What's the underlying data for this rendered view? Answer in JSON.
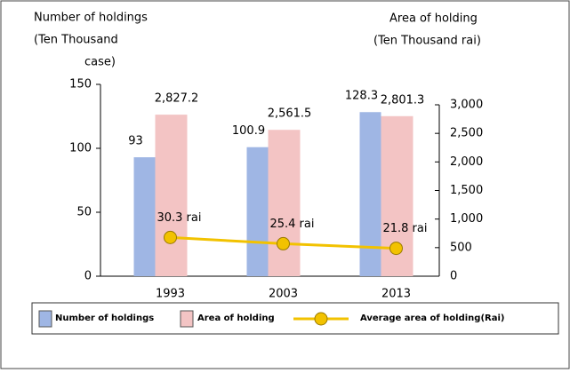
{
  "chart_data": {
    "type": "bar",
    "ylabel": [
      "Number of holdings",
      "(Ten Thousand",
      "case)"
    ],
    "y2label": [
      "Area of holding",
      "(Ten Thousand rai)"
    ],
    "categories": [
      "1993",
      "2003",
      "2013"
    ],
    "ylim": [
      0,
      150
    ],
    "yticks": [
      0,
      50,
      100,
      150
    ],
    "y2lim": [
      0,
      3000
    ],
    "y2ticks": [
      0,
      500,
      {
        "value": 1000,
        "label": "1,000"
      },
      {
        "value": 1500,
        "label": "1,500"
      },
      {
        "value": 2000,
        "label": "2,000"
      },
      {
        "value": 2500,
        "label": "2,500"
      },
      {
        "value": 3000,
        "label": "3,000"
      }
    ],
    "legend": "bottom",
    "series": [
      {
        "name": "Number of holdings",
        "type": "bar",
        "color": "#9fb6e4",
        "values": [
          93,
          100.9,
          128.3
        ]
      },
      {
        "name": "Area of holding",
        "type": "bar",
        "axis": "y2",
        "color": "#f3c4c4",
        "values": [
          2827.2,
          2561.5,
          2801.3
        ],
        "value_labels": [
          "2,827.2",
          "2,561.5",
          "2,801.3"
        ]
      },
      {
        "name": "Average area of holding(Rai)",
        "type": "line",
        "color": "#f2c200",
        "values": [
          30.3,
          25.4,
          21.8
        ],
        "value_labels": [
          "30.3 rai",
          "25.4 rai",
          "21.8 rai"
        ]
      }
    ]
  }
}
